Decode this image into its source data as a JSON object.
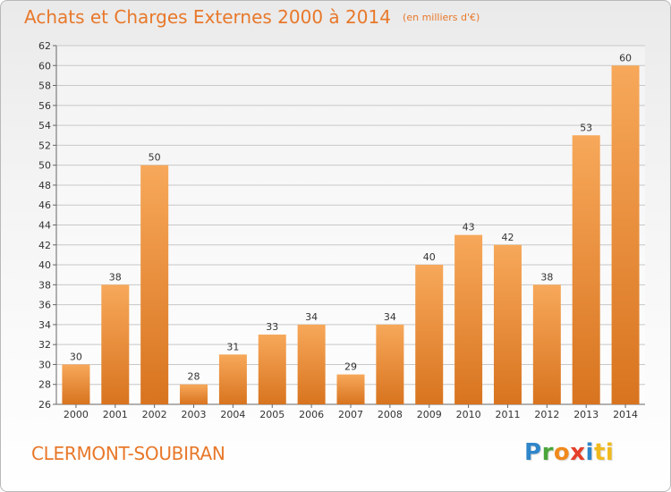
{
  "title": "Achats et Charges Externes 2000 à 2014",
  "subtitle": "(en milliers d'€)",
  "city": "CLERMONT-SOUBIRAN",
  "logo": {
    "letters": [
      "P",
      "r",
      "o",
      "x",
      "i",
      "ti"
    ]
  },
  "colors": {
    "accent": "#e8782a",
    "bar_top": "#f7a85a",
    "bar_bottom": "#d8741f",
    "grid": "#c8c8c8"
  },
  "chart_data": {
    "type": "bar",
    "categories": [
      "2000",
      "2001",
      "2002",
      "2003",
      "2004",
      "2005",
      "2006",
      "2007",
      "2008",
      "2009",
      "2010",
      "2011",
      "2012",
      "2013",
      "2014"
    ],
    "values": [
      30,
      38,
      50,
      28,
      31,
      33,
      34,
      29,
      34,
      40,
      43,
      42,
      38,
      53,
      60
    ],
    "title": "Achats et Charges Externes 2000 à 2014",
    "subtitle": "(en milliers d'€)",
    "xlabel": "",
    "ylabel": "",
    "ylim": [
      26,
      62
    ],
    "yticks": [
      26,
      28,
      30,
      32,
      34,
      36,
      38,
      40,
      42,
      44,
      46,
      48,
      50,
      52,
      54,
      56,
      58,
      60,
      62
    ],
    "grid": true,
    "data_labels": true
  }
}
